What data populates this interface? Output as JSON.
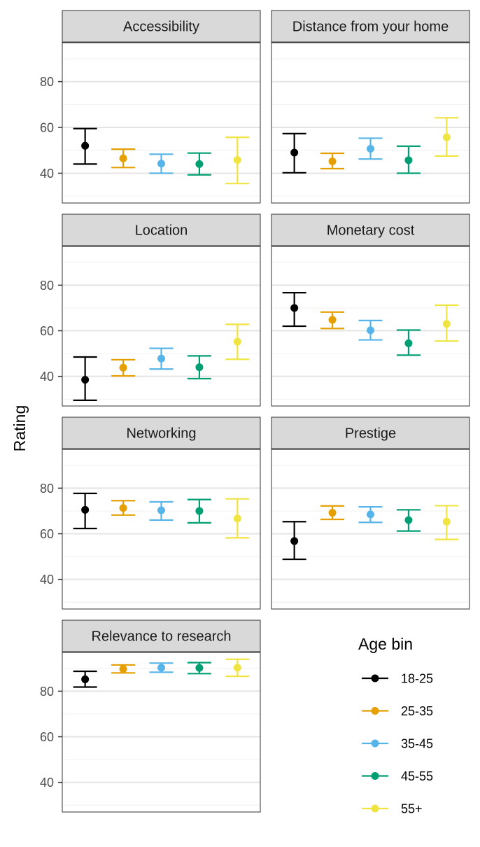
{
  "chart_data": {
    "type": "errorbar",
    "ylabel": "Rating",
    "ylim": [
      27,
      97
    ],
    "yticks": [
      40,
      60,
      80
    ],
    "legend": {
      "title": "Age bin",
      "placement": "bottom-right",
      "entries": [
        "18-25",
        "25-35",
        "35-45",
        "45-55",
        "55+"
      ]
    },
    "colors": {
      "18-25": "#000000",
      "25-35": "#E69F00",
      "35-45": "#56B4E9",
      "45-55": "#009E73",
      "55+": "#F0E442"
    },
    "series_names": [
      "18-25",
      "25-35",
      "35-45",
      "45-55",
      "55+"
    ],
    "panels": [
      {
        "title": "Accessibility",
        "points": [
          {
            "group": "18-25",
            "mean": 52,
            "low": 44,
            "high": 59.5
          },
          {
            "group": "25-35",
            "mean": 46.5,
            "low": 42.5,
            "high": 50.5
          },
          {
            "group": "35-45",
            "mean": 44.2,
            "low": 40,
            "high": 48.3
          },
          {
            "group": "45-55",
            "mean": 44,
            "low": 39.3,
            "high": 48.8
          },
          {
            "group": "55+",
            "mean": 45.8,
            "low": 35.5,
            "high": 55.7
          }
        ]
      },
      {
        "title": "Distance from your home",
        "points": [
          {
            "group": "18-25",
            "mean": 49,
            "low": 40.2,
            "high": 57.3
          },
          {
            "group": "25-35",
            "mean": 45.2,
            "low": 42,
            "high": 48.7
          },
          {
            "group": "35-45",
            "mean": 50.7,
            "low": 46.2,
            "high": 55.3
          },
          {
            "group": "45-55",
            "mean": 45.7,
            "low": 40,
            "high": 51.8
          },
          {
            "group": "55+",
            "mean": 55.7,
            "low": 47.5,
            "high": 64.2
          }
        ]
      },
      {
        "title": "Location",
        "points": [
          {
            "group": "18-25",
            "mean": 38.5,
            "low": 29.5,
            "high": 48.5
          },
          {
            "group": "25-35",
            "mean": 43.8,
            "low": 40.2,
            "high": 47.3
          },
          {
            "group": "35-45",
            "mean": 47.8,
            "low": 43.2,
            "high": 52.3
          },
          {
            "group": "45-55",
            "mean": 44,
            "low": 39,
            "high": 49
          },
          {
            "group": "55+",
            "mean": 55.2,
            "low": 47.5,
            "high": 62.8
          }
        ]
      },
      {
        "title": "Monetary cost",
        "points": [
          {
            "group": "18-25",
            "mean": 70,
            "low": 62,
            "high": 76.7
          },
          {
            "group": "25-35",
            "mean": 64.8,
            "low": 61,
            "high": 68.2
          },
          {
            "group": "35-45",
            "mean": 60.2,
            "low": 56,
            "high": 64.5
          },
          {
            "group": "45-55",
            "mean": 54.5,
            "low": 49.3,
            "high": 60.3
          },
          {
            "group": "55+",
            "mean": 63,
            "low": 55.5,
            "high": 71.2
          }
        ]
      },
      {
        "title": "Networking",
        "points": [
          {
            "group": "18-25",
            "mean": 70.5,
            "low": 62.3,
            "high": 77.7
          },
          {
            "group": "25-35",
            "mean": 71.3,
            "low": 68.2,
            "high": 74.5
          },
          {
            "group": "35-45",
            "mean": 70.3,
            "low": 66,
            "high": 74
          },
          {
            "group": "45-55",
            "mean": 70,
            "low": 64.8,
            "high": 75
          },
          {
            "group": "55+",
            "mean": 66.7,
            "low": 58.2,
            "high": 75.3
          }
        ]
      },
      {
        "title": "Prestige",
        "points": [
          {
            "group": "18-25",
            "mean": 56.8,
            "low": 48.8,
            "high": 65.3
          },
          {
            "group": "25-35",
            "mean": 69.2,
            "low": 66.3,
            "high": 72.2
          },
          {
            "group": "35-45",
            "mean": 68.5,
            "low": 65,
            "high": 71.8
          },
          {
            "group": "45-55",
            "mean": 66,
            "low": 61.2,
            "high": 70.5
          },
          {
            "group": "55+",
            "mean": 65.3,
            "low": 57.5,
            "high": 72.3
          }
        ]
      },
      {
        "title": "Relevance to research",
        "points": [
          {
            "group": "18-25",
            "mean": 85.2,
            "low": 81.8,
            "high": 88.7
          },
          {
            "group": "25-35",
            "mean": 89.7,
            "low": 88,
            "high": 91.5
          },
          {
            "group": "35-45",
            "mean": 90.3,
            "low": 88.3,
            "high": 92.3
          },
          {
            "group": "45-55",
            "mean": 90.2,
            "low": 87.7,
            "high": 92.5
          },
          {
            "group": "55+",
            "mean": 90.3,
            "low": 86.5,
            "high": 94
          }
        ]
      }
    ]
  }
}
